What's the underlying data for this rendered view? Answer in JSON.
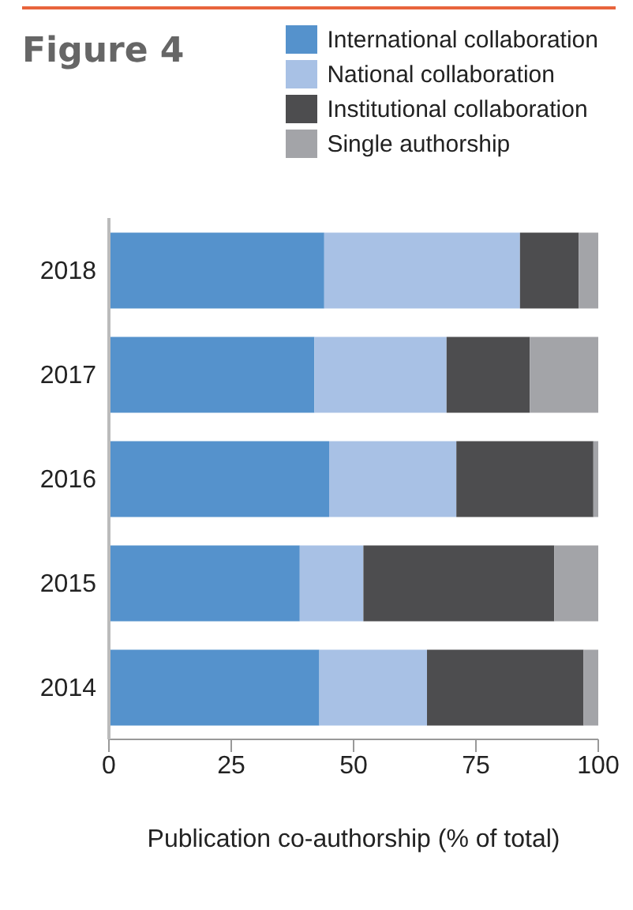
{
  "chart_data": {
    "type": "bar",
    "title": "Figure 4",
    "orientation": "horizontal",
    "stacked": true,
    "xlabel": "Publication co-authorship (% of total)",
    "categories": [
      "2018",
      "2017",
      "2016",
      "2015",
      "2014"
    ],
    "series": [
      {
        "name": "International collaboration",
        "color": "#5592cc",
        "values": [
          44,
          42,
          45,
          39,
          43
        ]
      },
      {
        "name": "National collaboration",
        "color": "#a8c1e5",
        "values": [
          40,
          27,
          26,
          13,
          22
        ]
      },
      {
        "name": "Institutional collaboration",
        "color": "#4d4d4f",
        "values": [
          12,
          17,
          28,
          39,
          32
        ]
      },
      {
        "name": "Single authorship",
        "color": "#a3a4a8",
        "values": [
          4,
          14,
          1,
          9,
          3
        ]
      }
    ],
    "xlim": [
      0,
      100
    ],
    "xticks": [
      0,
      25,
      50,
      75,
      100
    ],
    "grid": false,
    "legend": "top right"
  }
}
